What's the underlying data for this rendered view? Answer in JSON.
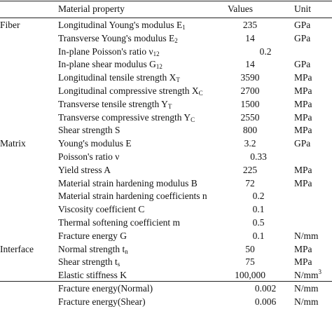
{
  "header": {
    "property": "Material property",
    "values": "Values",
    "unit": "Unit"
  },
  "rows": [
    {
      "group": "Fiber",
      "prop": "Longitudinal Young's modulus E",
      "sub": "1",
      "value": "235",
      "unit": "GPa"
    },
    {
      "group": "",
      "prop": "Transverse Young's modulus E",
      "sub": "2",
      "value": "14",
      "unit": "GPa"
    },
    {
      "group": "",
      "prop": "In-plane Poisson's ratio ν",
      "sub": "12",
      "value": "0.2",
      "unit": ""
    },
    {
      "group": "",
      "prop": "In-plane shear modulus G",
      "sub": "12",
      "value": "14",
      "unit": "GPa"
    },
    {
      "group": "",
      "prop": "Longitudinal tensile strength X",
      "sub": "T",
      "value": "3590",
      "unit": "MPa"
    },
    {
      "group": "",
      "prop": "Longitudinal compressive strength X",
      "sub": "C",
      "value": "2700",
      "unit": "MPa"
    },
    {
      "group": "",
      "prop": "Transverse tensile strength Y",
      "sub": "T",
      "value": "1500",
      "unit": "MPa"
    },
    {
      "group": "",
      "prop": "Transverse compressive strength Y",
      "sub": "C",
      "value": "2550",
      "unit": "MPa"
    },
    {
      "group": "",
      "prop": "Shear strength S",
      "sub": "",
      "value": "800",
      "unit": "MPa"
    },
    {
      "group": "Matrix",
      "prop": "Young's modulus E",
      "sub": "",
      "value": "3.2",
      "unit": "GPa"
    },
    {
      "group": "",
      "prop": "Poisson's ratio ν",
      "sub": "",
      "value": "0.33",
      "unit": ""
    },
    {
      "group": "",
      "prop": "Yield stress A",
      "sub": "",
      "value": "225",
      "unit": "MPa"
    },
    {
      "group": "",
      "prop": "Material strain hardening modulus B",
      "sub": "",
      "value": "72",
      "unit": "MPa"
    },
    {
      "group": "",
      "prop": "Material strain hardening coefficients n",
      "sub": "",
      "value": "0.2",
      "unit": ""
    },
    {
      "group": "",
      "prop": "Viscosity coefficient C",
      "sub": "",
      "value": "0.1",
      "unit": ""
    },
    {
      "group": "",
      "prop": "Thermal softening coefficient m",
      "sub": "",
      "value": "0.5",
      "unit": ""
    },
    {
      "group": "",
      "prop": "Fracture energy G",
      "sub": "",
      "value": "0.1",
      "unit": "N/mm"
    },
    {
      "group": "Interface",
      "prop": "Normal strength t",
      "sub": "n",
      "value": "50",
      "unit": "MPa"
    },
    {
      "group": "",
      "prop": "Shear strength t",
      "sub": "s",
      "value": "75",
      "unit": "MPa"
    },
    {
      "group": "",
      "prop": "Elastic stiffness K",
      "sub": "",
      "value": "100,000",
      "unit": "N/mm",
      "unit_sup": "3"
    },
    {
      "group": "",
      "prop": "Fracture energy(Normal)",
      "sub": "",
      "value": "0.002",
      "unit": "N/mm"
    },
    {
      "group": "",
      "prop": "Fracture energy(Shear)",
      "sub": "",
      "value": "0.006",
      "unit": "N/mm"
    }
  ],
  "value_offsets_note": ""
}
